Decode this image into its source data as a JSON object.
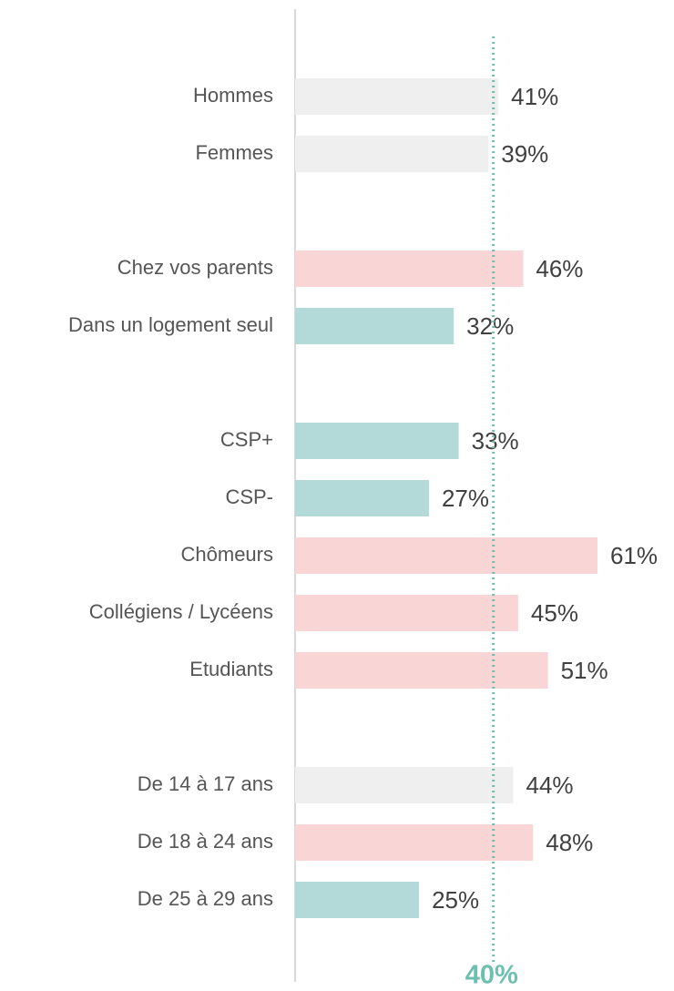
{
  "chart_data": {
    "type": "barh",
    "categories": [
      "Hommes",
      "Femmes",
      null,
      "Chez vos parents",
      "Dans un logement seul",
      null,
      "CSP+",
      "CSP-",
      "Chômeurs",
      "Collégiens / Lycéens",
      "Etudiants",
      null,
      "De 14 à 17 ans",
      "De 18 à 24 ans",
      "De 25 à 29 ans"
    ],
    "values": [
      41,
      39,
      null,
      46,
      32,
      null,
      33,
      27,
      61,
      45,
      51,
      null,
      44,
      48,
      25
    ],
    "value_labels": [
      "41%",
      "39%",
      null,
      "46%",
      "32%",
      null,
      "33%",
      "27%",
      "61%",
      "45%",
      "51%",
      null,
      "44%",
      "48%",
      "25%"
    ],
    "colors": [
      "#efefef",
      "#efefef",
      null,
      "#f9d6d5",
      "#b3dad8",
      null,
      "#b3dad8",
      "#b3dad8",
      "#f9d6d5",
      "#f9d6d5",
      "#f9d6d5",
      null,
      "#efefef",
      "#f9d6d5",
      "#b3dad8"
    ],
    "xlim": [
      0,
      70
    ],
    "reference_line": {
      "value": 40,
      "label": "40%",
      "color": "#6dbfb0"
    }
  }
}
